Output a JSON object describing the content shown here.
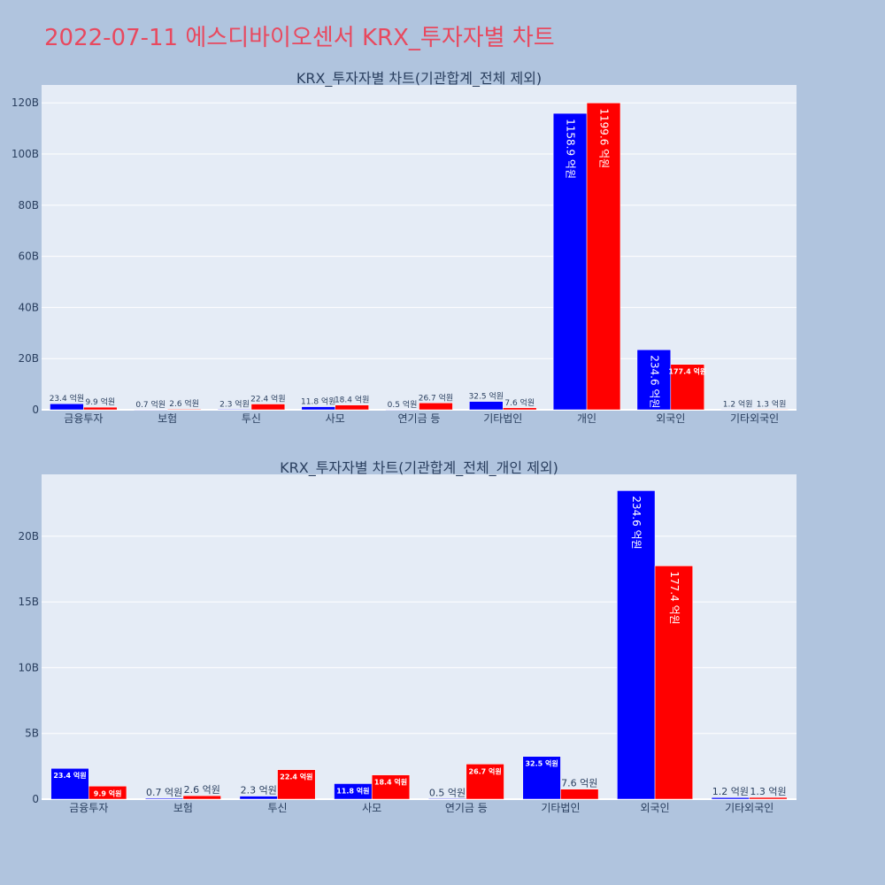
{
  "title": "2022-07-11 에스디바이오센서 KRX_투자자별 차트",
  "colors": {
    "buy": "#0000ff",
    "sell": "#ff0000",
    "plot_bg": "#e5ecf6",
    "page_bg": "#b0c4de",
    "title": "#e8495f",
    "axis_text": "#2a3f5f"
  },
  "chart_data": [
    {
      "type": "bar",
      "title": "KRX_투자자별 차트(기관합계_전체 제외)",
      "categories": [
        "금융투자",
        "보험",
        "투신",
        "사모",
        "연기금 등",
        "기타법인",
        "개인",
        "외국인",
        "기타외국인"
      ],
      "yticks": [
        "0",
        "20B",
        "40B",
        "60B",
        "80B",
        "100B",
        "120B"
      ],
      "ylim": [
        0,
        127
      ],
      "unit": "B",
      "grid": true,
      "series": [
        {
          "values": [
            2.34,
            0.07,
            0.23,
            1.18,
            0.05,
            3.25,
            115.89,
            23.46,
            0.12
          ],
          "labels": [
            "23.4 억원",
            "0.7 억원",
            "2.3 억원",
            "11.8 억원",
            "0.5 억원",
            "32.5 억원",
            "1158.9 억원",
            "234.6 억원",
            "1.2 억원"
          ]
        },
        {
          "values": [
            0.99,
            0.26,
            2.24,
            1.84,
            2.67,
            0.76,
            119.96,
            17.74,
            0.13
          ],
          "labels": [
            "9.9 억원",
            "2.6 억원",
            "22.4 억원",
            "18.4 억원",
            "26.7 억원",
            "7.6 억원",
            "1199.6 억원",
            "177.4 억원",
            "1.3 억원"
          ]
        }
      ]
    },
    {
      "type": "bar",
      "title": "KRX_투자자별 차트(기관합계_전체_개인 제외)",
      "categories": [
        "금융투자",
        "보험",
        "투신",
        "사모",
        "연기금 등",
        "기타법인",
        "외국인",
        "기타외국인"
      ],
      "yticks": [
        "0",
        "5B",
        "10B",
        "15B",
        "20B"
      ],
      "ylim": [
        0,
        24.7
      ],
      "unit": "B",
      "grid": true,
      "series": [
        {
          "values": [
            2.34,
            0.07,
            0.23,
            1.18,
            0.05,
            3.25,
            23.46,
            0.12
          ],
          "labels": [
            "23.4 억원",
            "0.7 억원",
            "2.3 억원",
            "11.8 억원",
            "0.5 억원",
            "32.5 억원",
            "234.6 억원",
            "1.2 억원"
          ]
        },
        {
          "values": [
            0.99,
            0.26,
            2.24,
            1.84,
            2.67,
            0.76,
            17.74,
            0.13
          ],
          "labels": [
            "9.9 억원",
            "2.6 억원",
            "22.4 억원",
            "18.4 억원",
            "26.7 억원",
            "7.6 억원",
            "177.4 억원",
            "1.3 억원"
          ]
        }
      ]
    }
  ]
}
